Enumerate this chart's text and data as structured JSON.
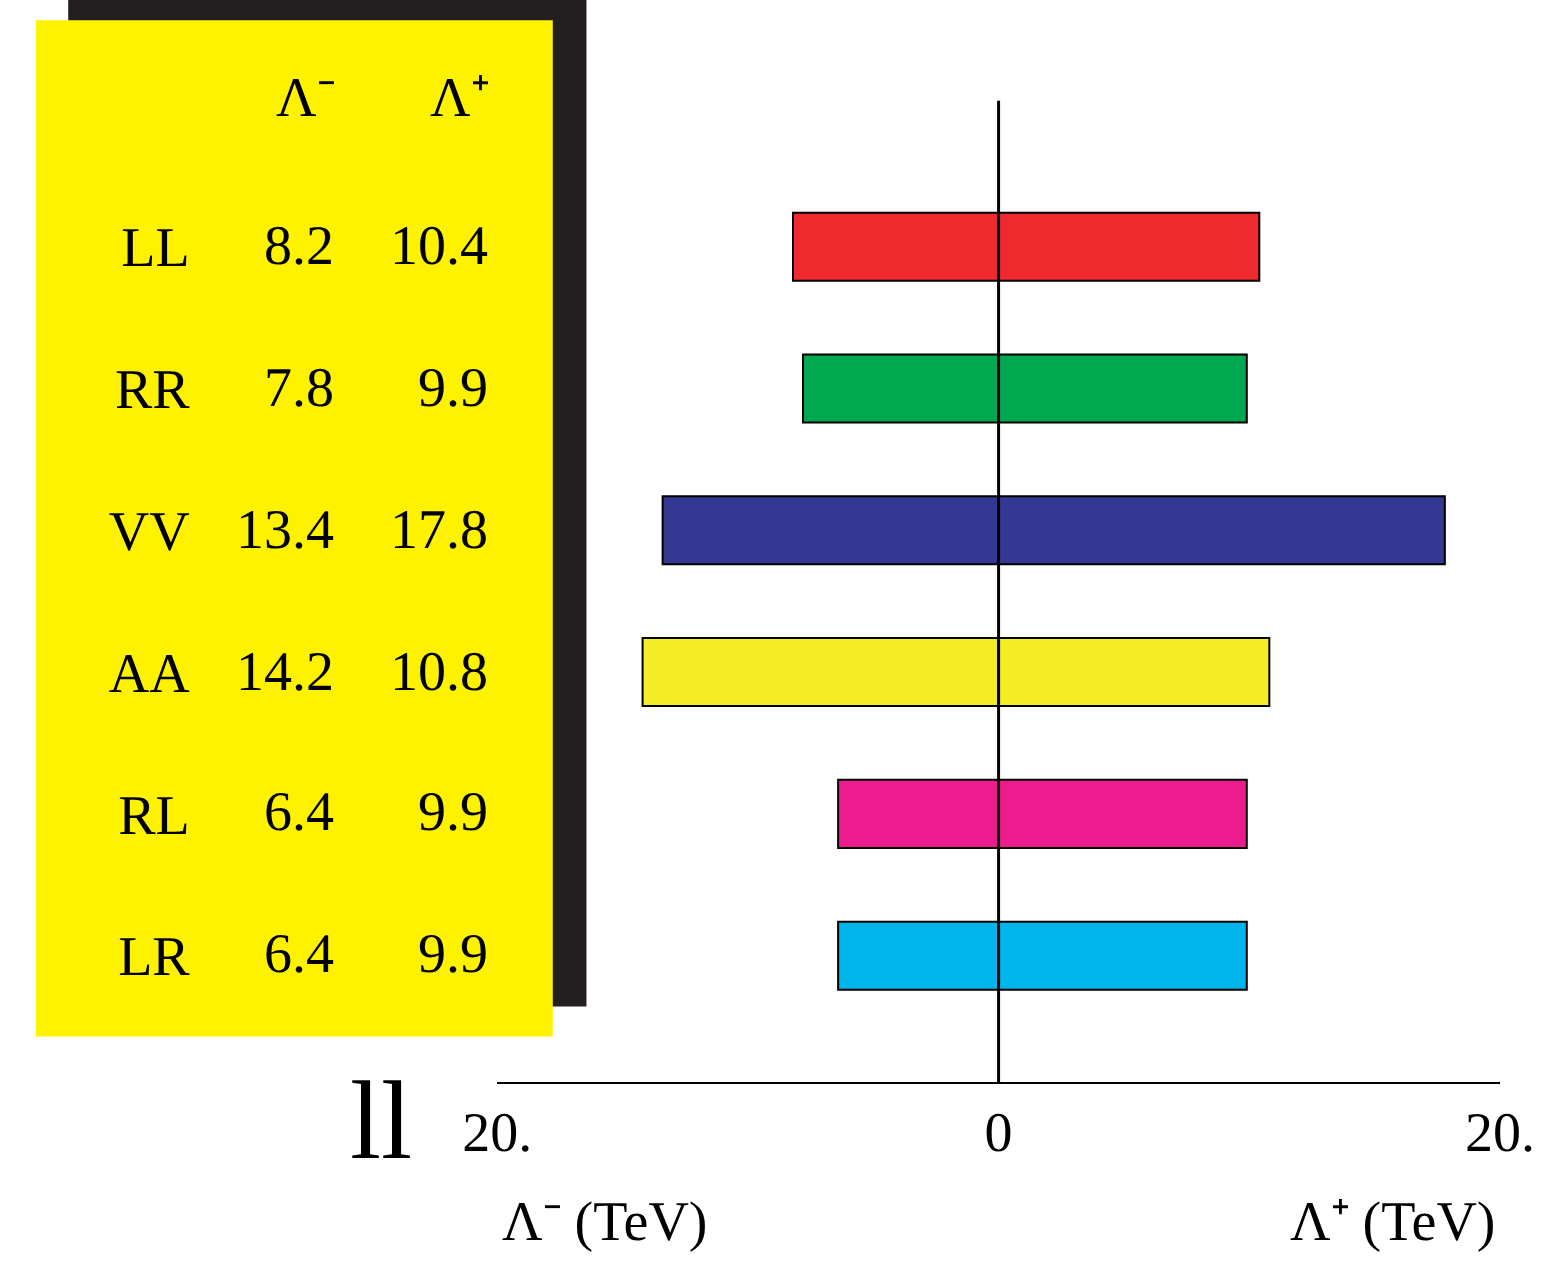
{
  "chart_data": {
    "type": "bar",
    "orientation": "horizontal",
    "stacked": true,
    "categories": [
      "LL",
      "RR",
      "VV",
      "AA",
      "RL",
      "LR"
    ],
    "series": [
      {
        "colors": [
          "#ee2a2f",
          "#00a84f",
          "#333893",
          "#f4ec24",
          "#ec1c8e",
          "#00b4ec"
        ],
        "values": [
          -8.2,
          -7.8,
          -13.4,
          -14.2,
          -6.4,
          -6.4
        ]
      },
      {
        "colors": [
          "#ee2a2f",
          "#00a84f",
          "#333893",
          "#f4ec24",
          "#ec1c8e",
          "#00b4ec"
        ],
        "values": [
          10.4,
          9.9,
          17.8,
          10.8,
          9.9,
          9.9
        ]
      }
    ],
    "xlim": [
      -20,
      20
    ],
    "xticks": [
      {
        "value": -20,
        "label": "20."
      },
      0,
      {
        "value": 20,
        "label": "20."
      }
    ],
    "xlabel": "Λ⁻ (TeV)",
    "annotations": [
      "Λ⁺ (TeV)",
      "ll",
      "Λ⁻",
      "Λ⁺",
      "8.2",
      "10.4",
      "7.8",
      "9.9",
      "13.4",
      "17.8",
      "14.2",
      "10.8",
      "6.4",
      "9.9",
      "6.4",
      "9.9"
    ],
    "ref_lines": [
      {
        "axis": "x",
        "value": 0,
        "color": "#000000"
      }
    ]
  }
}
